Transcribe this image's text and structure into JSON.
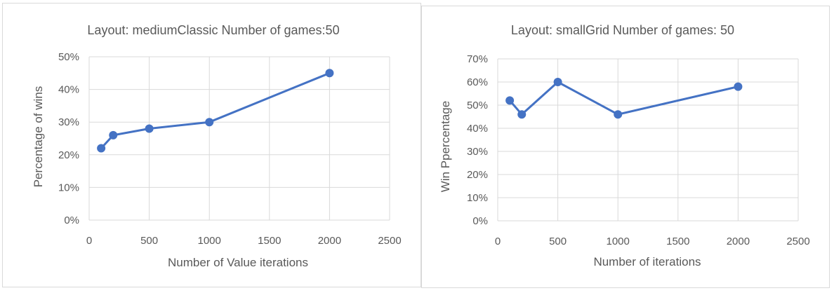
{
  "chart_data": [
    {
      "type": "line",
      "title": "Layout: mediumClassic  Number of games:50",
      "xlabel": "Number of Value iterations",
      "ylabel": "Percentage of wins",
      "x": [
        100,
        200,
        500,
        1000,
        2000
      ],
      "series": [
        {
          "values": [
            22,
            26,
            28,
            30,
            45
          ],
          "color": "#4472c4"
        }
      ],
      "xlim": [
        0,
        2500
      ],
      "ylim": [
        0,
        50
      ],
      "x_ticks": [
        "0",
        "500",
        "1000",
        "1500",
        "2000",
        "2500"
      ],
      "y_ticks": [
        "0%",
        "10%",
        "20%",
        "30%",
        "40%",
        "50%"
      ],
      "grid": true
    },
    {
      "type": "line",
      "title": "Layout: smallGrid   Number of games: 50",
      "xlabel": "Number of iterations",
      "ylabel": "Win Ppercentage",
      "x": [
        100,
        200,
        500,
        1000,
        2000
      ],
      "series": [
        {
          "values": [
            52,
            46,
            60,
            46,
            58
          ],
          "color": "#4472c4"
        }
      ],
      "xlim": [
        0,
        2500
      ],
      "ylim": [
        0,
        70
      ],
      "x_ticks": [
        "0",
        "500",
        "1000",
        "1500",
        "2000",
        "2500"
      ],
      "y_ticks": [
        "0%",
        "10%",
        "20%",
        "30%",
        "40%",
        "50%",
        "60%",
        "70%"
      ],
      "grid": true
    }
  ]
}
